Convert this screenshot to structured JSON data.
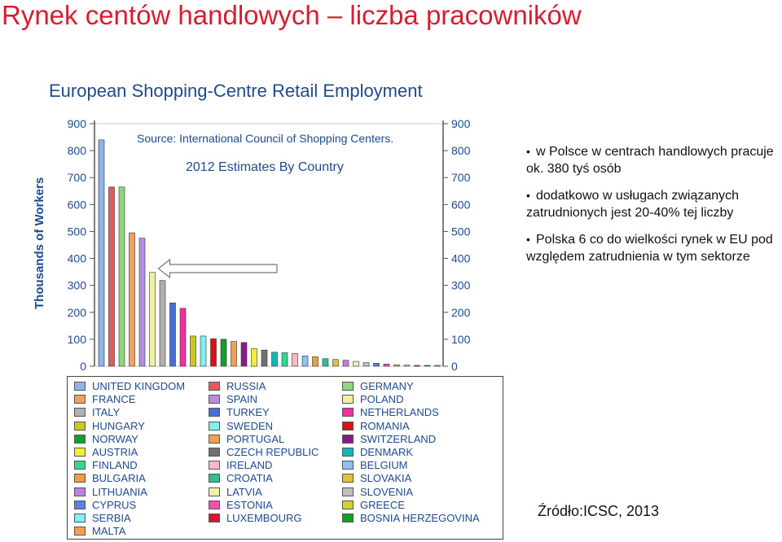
{
  "slide": {
    "title": "Rynek centów handlowych – liczba pracowników",
    "bullets": [
      "w Polsce w centrach handlowych pracuje ok. 380 tyś osób",
      "dodatkowo w usługach związanych zatrudnionych jest 20-40% tej liczby",
      "Polska 6 co do wielkości rynek w EU pod względem zatrudnienia w tym sektorze"
    ],
    "source_note": "Źródło:ICSC, 2013"
  },
  "chart_data": {
    "type": "bar",
    "title": "European Shopping-Centre Retail Employment",
    "subtitle": "2012 Estimates By Country",
    "source": "Source: International Council of Shopping Centers.",
    "ylabel": "Thousands of Workers",
    "xlabel": "",
    "ylim": [
      0,
      900
    ],
    "yticks": [
      "0",
      "100",
      "200",
      "300",
      "400",
      "500",
      "600",
      "700",
      "800",
      "900"
    ],
    "grid": false,
    "legend_position": "bottom",
    "categories": [
      "UNITED KINGDOM",
      "RUSSIA",
      "GERMANY",
      "FRANCE",
      "SPAIN",
      "POLAND",
      "ITALY",
      "TURKEY",
      "NETHERLANDS",
      "HUNGARY",
      "SWEDEN",
      "ROMANIA",
      "NORWAY",
      "PORTUGAL",
      "SWITZERLAND",
      "AUSTRIA",
      "CZECH REPUBLIC",
      "DENMARK",
      "FINLAND",
      "IRELAND",
      "BELGIUM",
      "BULGARIA",
      "CROATIA",
      "SLOVAKIA",
      "LITHUANIA",
      "LATVIA",
      "SLOVENIA",
      "CYPRUS",
      "ESTONIA",
      "GREECE",
      "SERBIA",
      "LUXEMBOURG",
      "BOSNIA HERZEGOVINA",
      "MALTA"
    ],
    "values": [
      840,
      665,
      665,
      495,
      475,
      348,
      318,
      235,
      215,
      112,
      112,
      102,
      100,
      92,
      88,
      65,
      60,
      52,
      50,
      47,
      38,
      35,
      28,
      25,
      22,
      18,
      13,
      11,
      8,
      5,
      4,
      3,
      2,
      1
    ],
    "colors": [
      "#8fb4e8",
      "#e35a5a",
      "#8ed67a",
      "#f0a060",
      "#b48ee0",
      "#f0f0a0",
      "#b0b0b0",
      "#4a6ed8",
      "#f030a0",
      "#c8c81e",
      "#80f0f0",
      "#e01010",
      "#10a030",
      "#f0a050",
      "#8a1a8a",
      "#f0f030",
      "#707070",
      "#10b8b8",
      "#30d890",
      "#f8b8c8",
      "#90c0f0",
      "#e8a040",
      "#30c090",
      "#e0c040",
      "#c080e0",
      "#f0f0b0",
      "#c0c0c0",
      "#6080e0",
      "#f050b0",
      "#d0d030",
      "#80f0f0",
      "#e01030",
      "#10a020",
      "#f0a050"
    ],
    "legend": [
      [
        "UNITED KINGDOM",
        "FRANCE",
        "ITALY",
        "HUNGARY",
        "NORWAY",
        "AUSTRIA",
        "FINLAND",
        "BULGARIA",
        "LITHUANIA",
        "CYPRUS",
        "SERBIA",
        "MALTA"
      ],
      [
        "RUSSIA",
        "SPAIN",
        "TURKEY",
        "SWEDEN",
        "PORTUGAL",
        "CZECH REPUBLIC",
        "IRELAND",
        "CROATIA",
        "LATVIA",
        "ESTONIA",
        "LUXEMBOURG"
      ],
      [
        "GERMANY",
        "POLAND",
        "NETHERLANDS",
        "ROMANIA",
        "SWITZERLAND",
        "DENMARK",
        "BELGIUM",
        "SLOVAKIA",
        "SLOVENIA",
        "GREECE",
        "BOSNIA HERZEGOVINA"
      ]
    ],
    "annotation": {
      "type": "arrow",
      "points_to": "POLAND"
    }
  }
}
